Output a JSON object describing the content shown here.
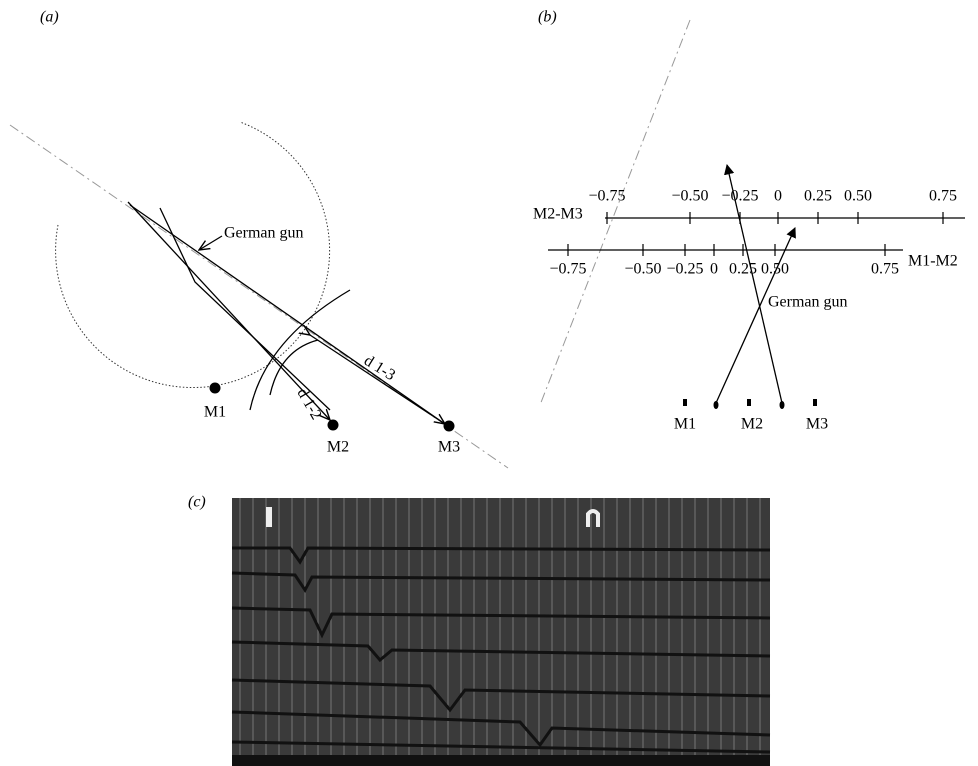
{
  "panels": [
    {
      "label": "(a)",
      "gun_label": "German gun",
      "distance_labels": [
        "d 1-2",
        "d 1-3"
      ],
      "microphones": [
        "M1",
        "M2",
        "M3"
      ]
    },
    {
      "label": "(b)",
      "axes": [
        {
          "name": "M2-M3",
          "ticks": [
            "−0.75",
            "−0.50",
            "−0.25",
            "0",
            "0.25",
            "0.50",
            "0.75"
          ]
        },
        {
          "name": "M1-M2",
          "ticks": [
            "−0.75",
            "−0.50",
            "−0.25",
            "0",
            "0.25",
            "0.50",
            "0.75"
          ]
        }
      ],
      "gun_label": "German gun",
      "microphones": [
        "M1",
        "M2",
        "M3"
      ]
    },
    {
      "label": "(c)"
    }
  ]
}
